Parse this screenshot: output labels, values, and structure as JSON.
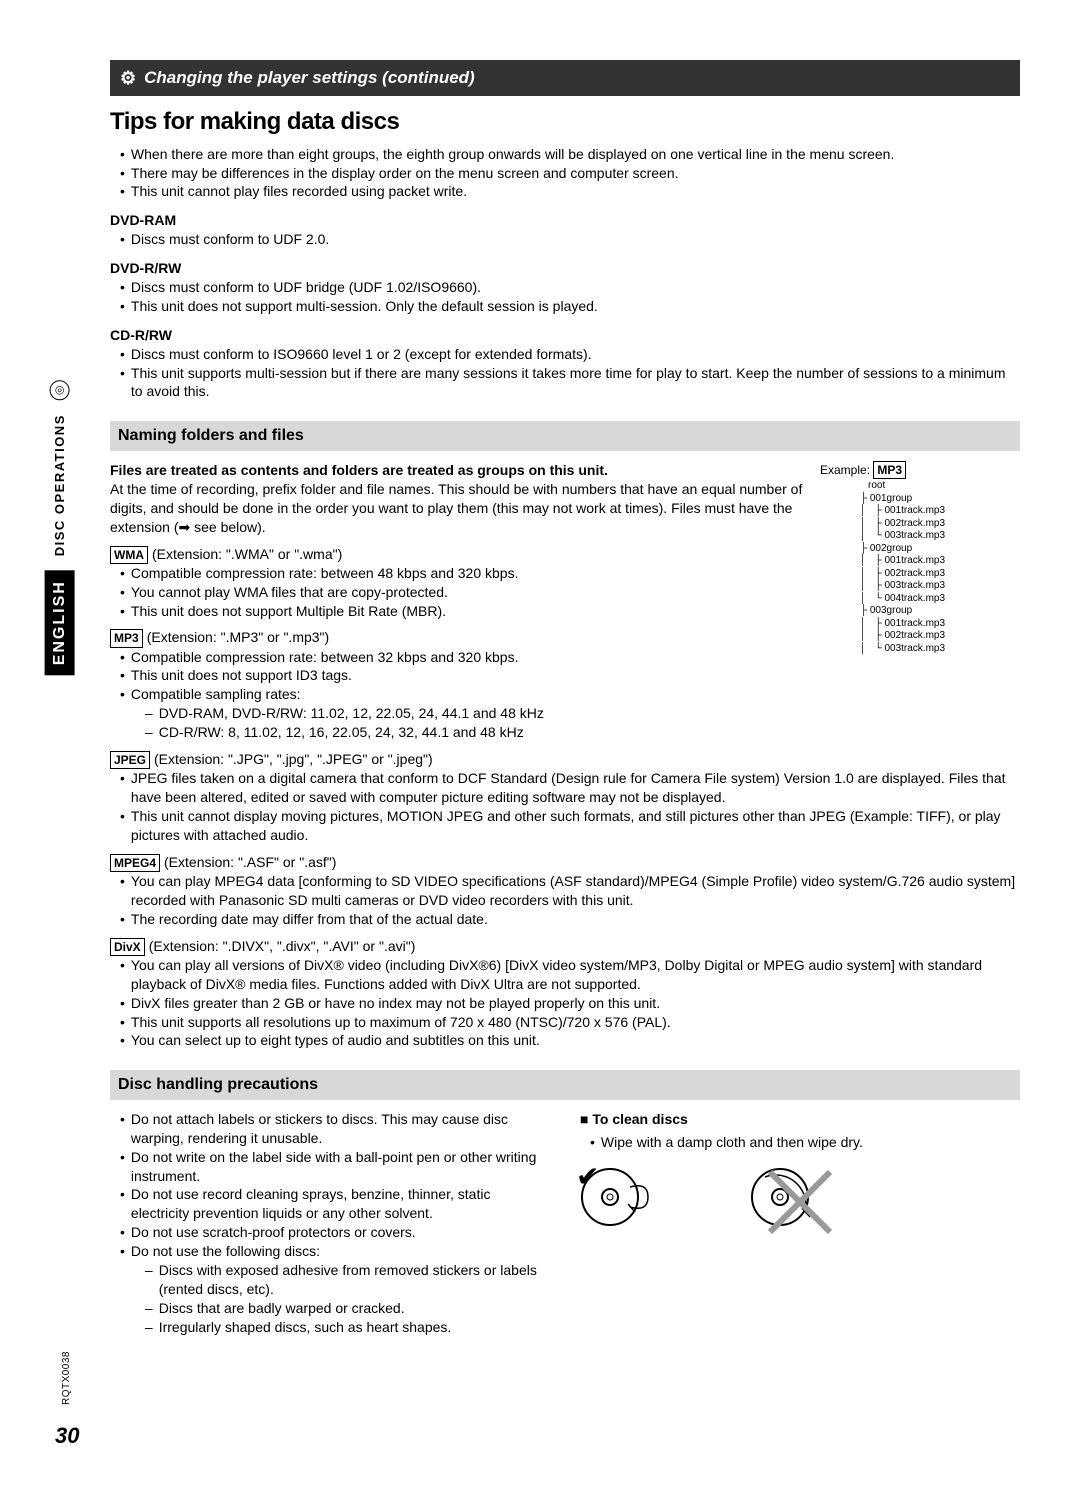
{
  "header": {
    "bar_title": "Changing the player settings (continued)"
  },
  "title": "Tips for making data discs",
  "general_bullets": [
    "When there are more than eight groups, the eighth group onwards will be displayed on one vertical line in the menu screen.",
    "There may be differences in the display order on the menu screen and computer screen.",
    "This unit cannot play files recorded using packet write."
  ],
  "dvdram": {
    "head": "DVD-RAM",
    "bullets": [
      "Discs must conform to UDF 2.0."
    ]
  },
  "dvdrrw": {
    "head": "DVD-R/RW",
    "bullets": [
      "Discs must conform to UDF bridge (UDF 1.02/ISO9660).",
      "This unit does not support multi-session. Only the default session is played."
    ]
  },
  "cdrrw": {
    "head": "CD-R/RW",
    "bullets": [
      "Discs must conform to ISO9660 level 1 or 2 (except for extended formats).",
      "This unit supports multi-session but if there are many sessions it takes more time for play to start. Keep the number of sessions to a minimum to avoid this."
    ]
  },
  "naming": {
    "heading": "Naming folders and files",
    "bold": "Files are treated as contents and folders are treated as groups on this unit.",
    "intro": "At the time of recording, prefix folder and file names. This should be with numbers that have an equal number of digits, and should be done in the order you want to play them (this may not work at times). Files must have the extension (➡ see below).",
    "example_label": "Example:",
    "example_tag": "MP3",
    "root": "root",
    "groups": [
      {
        "name": "001group",
        "tracks": [
          "001track.mp3",
          "002track.mp3",
          "003track.mp3"
        ]
      },
      {
        "name": "002group",
        "tracks": [
          "001track.mp3",
          "002track.mp3",
          "003track.mp3",
          "004track.mp3"
        ]
      },
      {
        "name": "003group",
        "tracks": [
          "001track.mp3",
          "002track.mp3",
          "003track.mp3"
        ]
      }
    ]
  },
  "wma": {
    "tag": "WMA",
    "ext": "(Extension: \".WMA\" or \".wma\")",
    "bullets": [
      "Compatible compression rate: between 48 kbps and 320 kbps.",
      "You cannot play WMA files that are copy-protected.",
      "This unit does not support Multiple Bit Rate (MBR)."
    ]
  },
  "mp3": {
    "tag": "MP3",
    "ext": "(Extension: \".MP3\" or \".mp3\")",
    "bullets": [
      "Compatible compression rate: between 32 kbps and 320 kbps.",
      "This unit does not support ID3 tags.",
      "Compatible sampling rates:"
    ],
    "sub": [
      "DVD-RAM, DVD-R/RW: 11.02, 12, 22.05, 24, 44.1 and 48 kHz",
      "CD-R/RW: 8, 11.02, 12, 16, 22.05, 24, 32, 44.1 and 48 kHz"
    ]
  },
  "jpeg": {
    "tag": "JPEG",
    "ext": "(Extension: \".JPG\", \".jpg\", \".JPEG\" or \".jpeg\")",
    "bullets": [
      "JPEG files taken on a digital camera that conform to DCF Standard (Design rule for Camera File system) Version 1.0 are displayed. Files that have been altered, edited or saved with computer picture editing software may not be displayed.",
      "This unit cannot display moving pictures, MOTION JPEG and other such formats, and still pictures other than JPEG (Example: TIFF), or play pictures with attached audio."
    ]
  },
  "mpeg4": {
    "tag": "MPEG4",
    "ext": "(Extension: \".ASF\" or \".asf\")",
    "bullets": [
      "You can play MPEG4 data [conforming to SD VIDEO specifications (ASF standard)/MPEG4 (Simple Profile) video system/G.726 audio system] recorded with Panasonic SD multi cameras or DVD video recorders with this unit.",
      "The recording date may differ from that of the actual date."
    ]
  },
  "divx": {
    "tag": "DivX",
    "ext": "(Extension: \".DIVX\", \".divx\", \".AVI\" or \".avi\")",
    "bullets": [
      "You can play all versions of DivX® video (including DivX®6) [DivX video system/MP3, Dolby Digital or MPEG audio system] with standard playback of DivX® media files. Functions added with DivX Ultra are not supported.",
      "DivX files greater than 2 GB or have no index may not be played properly on this unit.",
      "This unit supports all resolutions up to maximum of 720 x 480 (NTSC)/720 x 576 (PAL).",
      "You can select up to eight types of audio and subtitles on this unit."
    ]
  },
  "precautions": {
    "heading": "Disc handling precautions",
    "left": [
      "Do not attach labels or stickers to discs. This may cause disc warping, rendering it unusable.",
      "Do not write on the label side with a ball-point pen or other writing instrument.",
      "Do not use record cleaning sprays, benzine, thinner, static electricity prevention liquids or any other solvent.",
      "Do not use scratch-proof protectors or covers.",
      "Do not use the following discs:"
    ],
    "left_sub": [
      "Discs with exposed adhesive from removed stickers or labels (rented discs, etc).",
      "Discs that are badly warped or cracked.",
      "Irregularly shaped discs, such as heart shapes."
    ],
    "clean_title": "To clean discs",
    "clean_bullet": "Wipe with a damp cloth and then wipe dry."
  },
  "sidebar": {
    "lang": "ENGLISH",
    "ops": "DISC OPERATIONS"
  },
  "footer": {
    "doc": "RQTX0038",
    "page": "30"
  }
}
